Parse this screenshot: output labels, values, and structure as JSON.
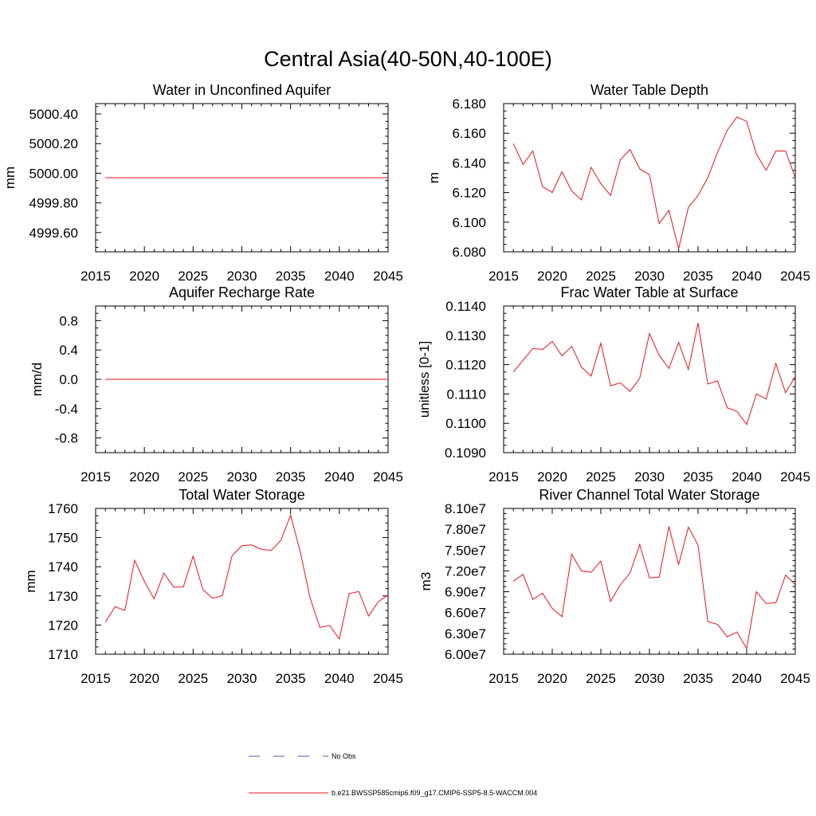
{
  "figure": {
    "title": "Central Asia(40-50N,40-100E)"
  },
  "legend": {
    "items": [
      {
        "label": "No Obs",
        "color": "#4f5aa8",
        "dash": true
      },
      {
        "label": "b.e21.BWSSP585cmip6.f09_g17.CMIP6-SSP5-8.5-WACCM.004",
        "color": "#e8141c",
        "dash": false
      }
    ]
  },
  "chart_data": [
    {
      "type": "line",
      "title": "Water in Unconfined Aquifer",
      "ylabel": "mm",
      "xlim": [
        2015,
        2045
      ],
      "ylim": [
        4999.47,
        5000.47
      ],
      "xticks": [
        "2015",
        "2020",
        "2025",
        "2030",
        "2035",
        "2040",
        "2045"
      ],
      "yticks": [
        "4999.60",
        "4999.80",
        "5000.00",
        "5000.20",
        "5000.40"
      ],
      "ytick_values": [
        4999.6,
        4999.8,
        5000.0,
        5000.2,
        5000.4
      ],
      "series": [
        {
          "x": [
            2016,
            2017,
            2018,
            2019,
            2020,
            2021,
            2022,
            2023,
            2024,
            2025,
            2026,
            2027,
            2028,
            2029,
            2030,
            2031,
            2032,
            2033,
            2034,
            2035,
            2036,
            2037,
            2038,
            2039,
            2040,
            2041,
            2042,
            2043,
            2044,
            2045
          ],
          "values": [
            4999.97,
            4999.97,
            4999.97,
            4999.97,
            4999.97,
            4999.97,
            4999.97,
            4999.97,
            4999.97,
            4999.97,
            4999.97,
            4999.97,
            4999.97,
            4999.97,
            4999.97,
            4999.97,
            4999.97,
            4999.97,
            4999.97,
            4999.97,
            4999.97,
            4999.97,
            4999.97,
            4999.97,
            4999.97,
            4999.97,
            4999.97,
            4999.97,
            4999.97,
            4999.97
          ]
        }
      ]
    },
    {
      "type": "line",
      "title": "Water Table Depth",
      "ylabel": "m",
      "xlim": [
        2015,
        2045
      ],
      "ylim": [
        6.08,
        6.18
      ],
      "xticks": [
        "2015",
        "2020",
        "2025",
        "2030",
        "2035",
        "2040",
        "2045"
      ],
      "yticks": [
        "6.080",
        "6.100",
        "6.120",
        "6.140",
        "6.160",
        "6.180"
      ],
      "ytick_values": [
        6.08,
        6.1,
        6.12,
        6.14,
        6.16,
        6.18
      ],
      "series": [
        {
          "x": [
            2016,
            2017,
            2018,
            2019,
            2020,
            2021,
            2022,
            2023,
            2024,
            2025,
            2026,
            2027,
            2028,
            2029,
            2030,
            2031,
            2032,
            2033,
            2034,
            2035,
            2036,
            2037,
            2038,
            2039,
            2040,
            2041,
            2042,
            2043,
            2044,
            2045
          ],
          "values": [
            6.153,
            6.139,
            6.148,
            6.124,
            6.12,
            6.134,
            6.121,
            6.115,
            6.137,
            6.126,
            6.118,
            6.142,
            6.149,
            6.136,
            6.132,
            6.099,
            6.108,
            6.082,
            6.11,
            6.118,
            6.13,
            6.147,
            6.162,
            6.171,
            6.168,
            6.146,
            6.135,
            6.148,
            6.148,
            6.13
          ]
        }
      ]
    },
    {
      "type": "line",
      "title": "Aquifer Recharge Rate",
      "ylabel": "mm/d",
      "xlim": [
        2015,
        2045
      ],
      "ylim": [
        -1.0,
        1.0
      ],
      "xticks": [
        "2015",
        "2020",
        "2025",
        "2030",
        "2035",
        "2040",
        "2045"
      ],
      "yticks": [
        "-0.8",
        "-0.4",
        "0.0",
        "0.4",
        "0.8"
      ],
      "ytick_values": [
        -0.8,
        -0.4,
        0.0,
        0.4,
        0.8
      ],
      "series": [
        {
          "x": [
            2016,
            2017,
            2018,
            2019,
            2020,
            2021,
            2022,
            2023,
            2024,
            2025,
            2026,
            2027,
            2028,
            2029,
            2030,
            2031,
            2032,
            2033,
            2034,
            2035,
            2036,
            2037,
            2038,
            2039,
            2040,
            2041,
            2042,
            2043,
            2044,
            2045
          ],
          "values": [
            0,
            0,
            0,
            0,
            0,
            0,
            0,
            0,
            0,
            0,
            0,
            0,
            0,
            0,
            0,
            0,
            0,
            0,
            0,
            0,
            0,
            0,
            0,
            0,
            0,
            0,
            0,
            0,
            0,
            0
          ]
        }
      ]
    },
    {
      "type": "line",
      "title": "Frac Water Table at Surface",
      "ylabel": "unitless [0-1]",
      "xlim": [
        2015,
        2045
      ],
      "ylim": [
        0.109,
        0.114
      ],
      "xticks": [
        "2015",
        "2020",
        "2025",
        "2030",
        "2035",
        "2040",
        "2045"
      ],
      "yticks": [
        "0.1090",
        "0.1100",
        "0.1110",
        "0.1120",
        "0.1130",
        "0.1140"
      ],
      "ytick_values": [
        0.109,
        0.11,
        0.111,
        0.112,
        0.113,
        0.114
      ],
      "series": [
        {
          "x": [
            2016,
            2017,
            2018,
            2019,
            2020,
            2021,
            2022,
            2023,
            2024,
            2025,
            2026,
            2027,
            2028,
            2029,
            2030,
            2031,
            2032,
            2033,
            2034,
            2035,
            2036,
            2037,
            2038,
            2039,
            2040,
            2041,
            2042,
            2043,
            2044,
            2045
          ],
          "values": [
            0.11175,
            0.11215,
            0.11255,
            0.11252,
            0.11279,
            0.1123,
            0.11263,
            0.11192,
            0.11161,
            0.11273,
            0.11128,
            0.11138,
            0.11109,
            0.11154,
            0.11306,
            0.11232,
            0.11187,
            0.11276,
            0.11184,
            0.11342,
            0.11134,
            0.11145,
            0.11053,
            0.11041,
            0.10996,
            0.111,
            0.11083,
            0.11204,
            0.11104,
            0.1116
          ]
        }
      ]
    },
    {
      "type": "line",
      "title": "Total Water Storage",
      "ylabel": "mm",
      "xlim": [
        2015,
        2045
      ],
      "ylim": [
        1710,
        1760
      ],
      "xticks": [
        "2015",
        "2020",
        "2025",
        "2030",
        "2035",
        "2040",
        "2045"
      ],
      "yticks": [
        "1710",
        "1720",
        "1730",
        "1740",
        "1750",
        "1760"
      ],
      "ytick_values": [
        1710,
        1720,
        1730,
        1740,
        1750,
        1760
      ],
      "series": [
        {
          "x": [
            2016,
            2017,
            2018,
            2019,
            2020,
            2021,
            2022,
            2023,
            2024,
            2025,
            2026,
            2027,
            2028,
            2029,
            2030,
            2031,
            2032,
            2033,
            2034,
            2035,
            2036,
            2037,
            2038,
            2039,
            2040,
            2041,
            2042,
            2043,
            2044,
            2045
          ],
          "values": [
            1721,
            1726.3,
            1725,
            1742.2,
            1735,
            1729,
            1737.8,
            1733,
            1733.1,
            1743.6,
            1732.2,
            1729.2,
            1730.1,
            1743.8,
            1747.2,
            1747.5,
            1746,
            1745.6,
            1749,
            1757.7,
            1745,
            1729.3,
            1719.2,
            1719.9,
            1715.2,
            1730.8,
            1731.5,
            1723.1,
            1728,
            1730.3
          ]
        }
      ]
    },
    {
      "type": "line",
      "title": "River Channel Total Water Storage",
      "ylabel": "m3",
      "xlim": [
        2015,
        2045
      ],
      "ylim": [
        60000000,
        81000000
      ],
      "xticks": [
        "2015",
        "2020",
        "2025",
        "2030",
        "2035",
        "2040",
        "2045"
      ],
      "yticks": [
        "6.00e7",
        "6.30e7",
        "6.60e7",
        "6.90e7",
        "7.20e7",
        "7.50e7",
        "7.80e7",
        "8.10e7"
      ],
      "ytick_values": [
        60000000,
        63000000,
        66000000,
        69000000,
        72000000,
        75000000,
        78000000,
        81000000
      ],
      "series": [
        {
          "x": [
            2016,
            2017,
            2018,
            2019,
            2020,
            2021,
            2022,
            2023,
            2024,
            2025,
            2026,
            2027,
            2028,
            2029,
            2030,
            2031,
            2032,
            2033,
            2034,
            2035,
            2036,
            2037,
            2038,
            2039,
            2040,
            2041,
            2042,
            2043,
            2044,
            2045
          ],
          "values": [
            70500000,
            71500000,
            67900000,
            68800000,
            66600000,
            65400000,
            74400000,
            72000000,
            71800000,
            73400000,
            67600000,
            70000000,
            71700000,
            75800000,
            71000000,
            71100000,
            78400000,
            72900000,
            78300000,
            75700000,
            64700000,
            64300000,
            62500000,
            63200000,
            60800000,
            69000000,
            67300000,
            67400000,
            71400000,
            70000000
          ]
        }
      ]
    }
  ]
}
